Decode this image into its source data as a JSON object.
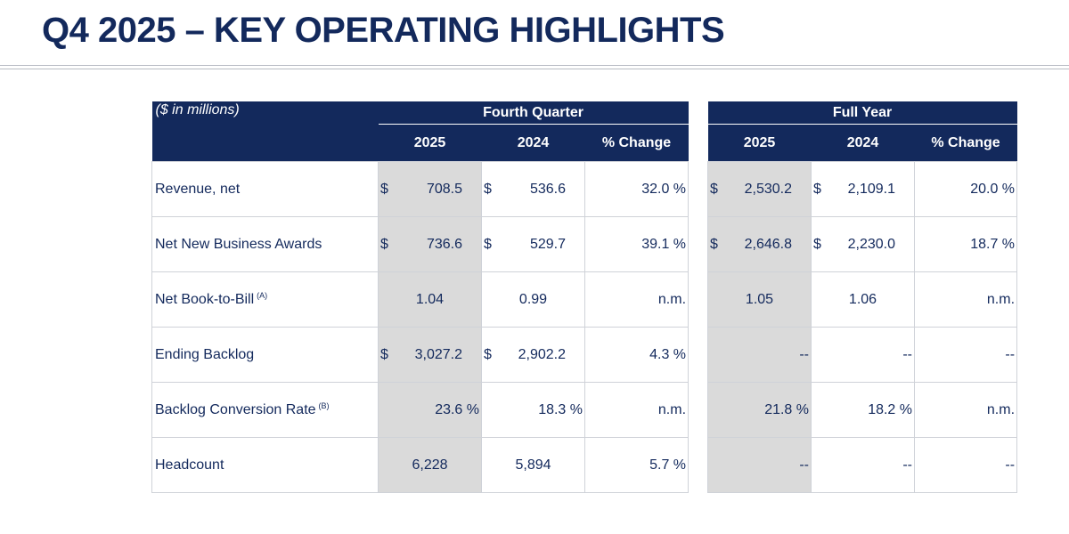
{
  "page": {
    "title": "Q4 2025 – KEY OPERATING HIGHLIGHTS"
  },
  "table": {
    "units": "($ in millions)",
    "groups": {
      "quarter": "Fourth Quarter",
      "year": "Full Year"
    },
    "columns": {
      "y2025": "2025",
      "y2024": "2024",
      "change": "% Change"
    },
    "currency": "$",
    "rows": [
      {
        "label": "Revenue, net",
        "sup": "",
        "q2025": "708.5",
        "q2024": "536.6",
        "qchg": "32.0 %",
        "f2025": "2,530.2",
        "f2024": "2,109.1",
        "fchg": "20.0 %"
      },
      {
        "label": "Net New Business Awards",
        "sup": "",
        "q2025": "736.6",
        "q2024": "529.7",
        "qchg": "39.1 %",
        "f2025": "2,646.8",
        "f2024": "2,230.0",
        "fchg": "18.7 %"
      },
      {
        "label": "Net Book-to-Bill",
        "sup": "(A)",
        "q2025": "1.04",
        "q2024": "0.99",
        "qchg": "n.m.",
        "f2025": "1.05",
        "f2024": "1.06",
        "fchg": "n.m."
      },
      {
        "label": "Ending Backlog",
        "sup": "",
        "q2025": "3,027.2",
        "q2024": "2,902.2",
        "qchg": "4.3 %",
        "f2025": "--",
        "f2024": "--",
        "fchg": "--"
      },
      {
        "label": "Backlog Conversion Rate",
        "sup": "(B)",
        "q2025": "23.6 %",
        "q2024": "18.3 %",
        "qchg": "n.m.",
        "f2025": "21.8 %",
        "f2024": "18.2 %",
        "fchg": "n.m."
      },
      {
        "label": "Headcount",
        "sup": "",
        "q2025": "6,228",
        "q2024": "5,894",
        "qchg": "5.7 %",
        "f2025": "--",
        "f2024": "--",
        "fchg": "--"
      }
    ]
  }
}
